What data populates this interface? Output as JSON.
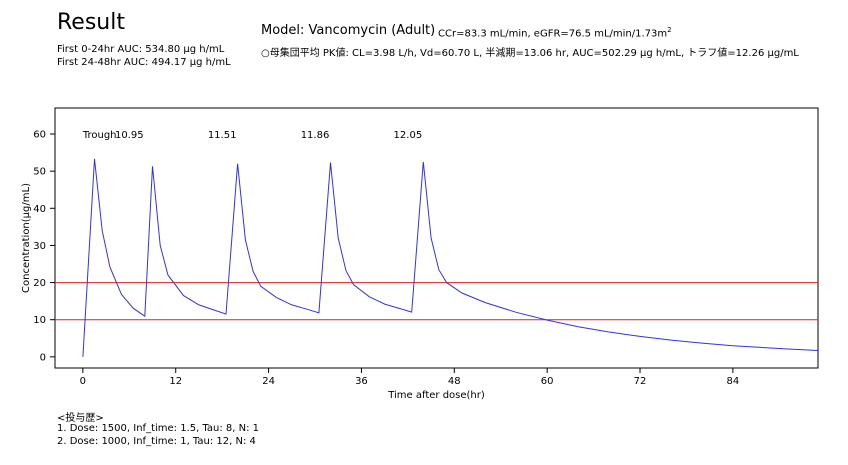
{
  "result": {
    "title": "Result",
    "auc_first": "First   0-24hr AUC: 534.80 μg h/mL",
    "auc_second": "First 24-48hr AUC: 494.17 μg h/mL"
  },
  "model": {
    "title": "Model: Vancomycin (Adult)",
    "renal_prefix": "CCr=83.3 mL/min,  eGFR=76.5 mL/min/1.73m",
    "renal_superscript": "2",
    "pk_summary": "○母集団平均 PK値: CL=3.98 L/h, Vd=60.70 L, 半減期=13.06 hr, AUC=502.29 μg h/mL, トラフ値=12.26 μg/mL"
  },
  "history": {
    "heading": "<投与歴>",
    "doses": [
      "1. Dose: 1500,  Inf_time: 1.5, Tau:   8, N:  1",
      "2. Dose: 1000,  Inf_time:   1, Tau:  12, N:  4"
    ]
  },
  "chart_data": {
    "type": "line",
    "title": "",
    "xlabel": "Time after dose(hr)",
    "ylabel": "Concentration(μg/mL)",
    "xlim": [
      -3.6,
      95
    ],
    "ylim": [
      -3,
      67
    ],
    "xticks": [
      0,
      12,
      24,
      36,
      48,
      60,
      72,
      84
    ],
    "yticks": [
      0,
      10,
      20,
      30,
      40,
      50,
      60
    ],
    "grid": false,
    "legend": "none",
    "series_color": "#3333dd",
    "reference_lines": [
      {
        "y": 20,
        "color": "#dd2222"
      },
      {
        "y": 10,
        "color": "#dd2222"
      }
    ],
    "trough_header": "Trough",
    "trough_labels": [
      {
        "x": 6,
        "text": "10.95"
      },
      {
        "x": 18,
        "text": "11.51"
      },
      {
        "x": 30,
        "text": "11.86"
      },
      {
        "x": 42,
        "text": "12.05"
      }
    ],
    "series": [
      {
        "x": [
          0,
          1.5,
          2.5,
          3.5,
          5,
          6.5,
          8,
          9,
          10,
          11,
          13,
          15,
          17,
          18.5,
          20,
          21,
          22,
          23,
          25,
          27,
          29,
          30.5,
          32,
          33,
          34,
          35,
          37,
          39,
          41,
          42.5,
          44,
          45,
          46,
          47,
          49,
          52,
          56,
          60,
          64,
          68,
          72,
          76,
          80,
          84,
          88,
          92,
          95
        ],
        "y": [
          0,
          53.3,
          34.0,
          24.2,
          16.8,
          13.1,
          10.95,
          51.3,
          30.0,
          22.0,
          16.5,
          14.0,
          12.6,
          11.51,
          52.0,
          31.5,
          23.0,
          19.0,
          16.0,
          14.0,
          12.8,
          11.86,
          52.3,
          32.0,
          23.2,
          19.4,
          16.2,
          14.2,
          13.0,
          12.05,
          52.5,
          32.0,
          23.5,
          20.0,
          17.2,
          14.6,
          12.0,
          9.9,
          8.1,
          6.7,
          5.5,
          4.5,
          3.7,
          3.0,
          2.5,
          2.0,
          1.7
        ]
      }
    ]
  }
}
